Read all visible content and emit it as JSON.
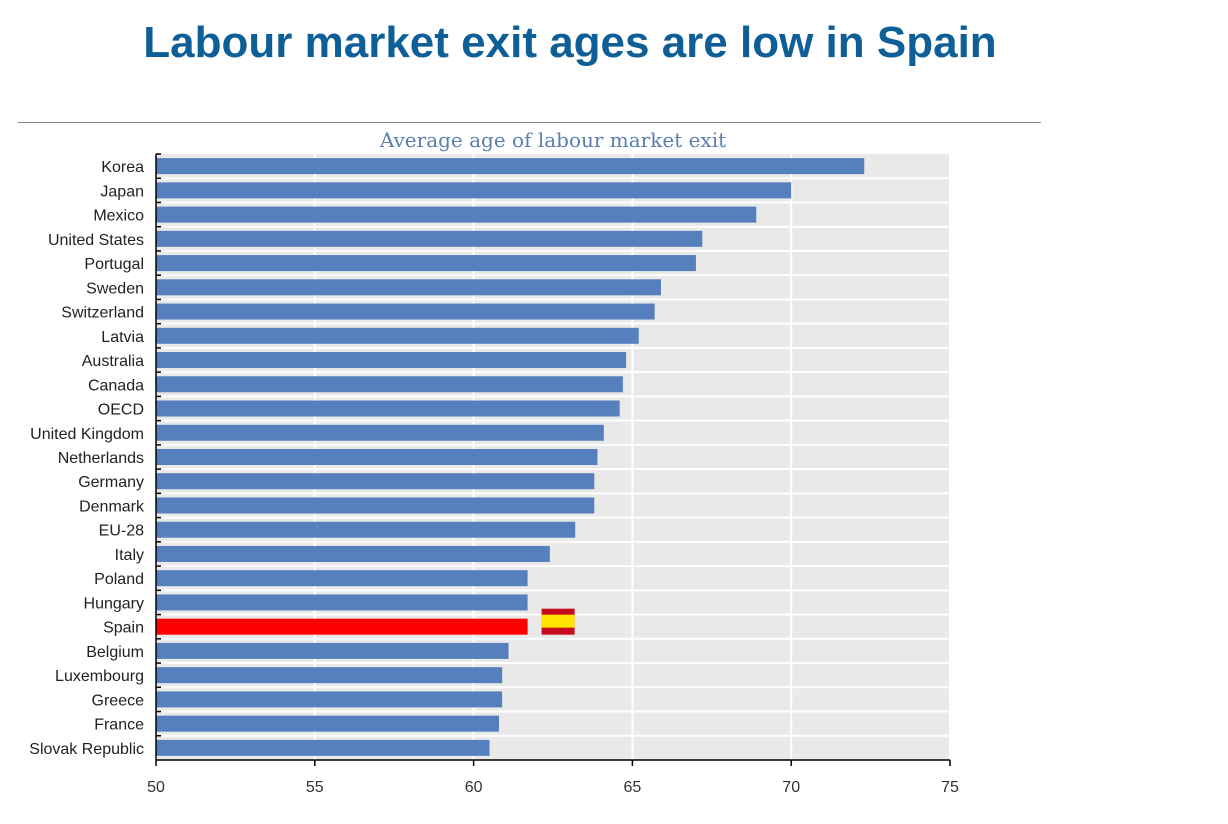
{
  "header": {
    "title": "Labour market exit ages are low in Spain"
  },
  "chart_data": {
    "type": "bar",
    "orientation": "horizontal",
    "title": "Average age of labour market exit",
    "xlabel": "",
    "ylabel": "",
    "xlim": [
      50,
      75
    ],
    "xticks": [
      50,
      55,
      60,
      65,
      70,
      75
    ],
    "grid": true,
    "categories": [
      "Korea",
      "Japan",
      "Mexico",
      "United States",
      "Portugal",
      "Sweden",
      "Switzerland",
      "Latvia",
      "Australia",
      "Canada",
      "OECD",
      "United Kingdom",
      "Netherlands",
      "Germany",
      "Denmark",
      "EU-28",
      "Italy",
      "Poland",
      "Hungary",
      "Spain",
      "Belgium",
      "Luxembourg",
      "Greece",
      "France",
      "Slovak Republic"
    ],
    "values": [
      72.3,
      70.0,
      68.9,
      67.2,
      67.0,
      65.9,
      65.7,
      65.2,
      64.8,
      64.7,
      64.6,
      64.1,
      63.9,
      63.8,
      63.8,
      63.2,
      62.4,
      61.7,
      61.7,
      61.7,
      61.1,
      60.9,
      60.9,
      60.8,
      60.5
    ],
    "highlight": {
      "category": "Spain",
      "color": "#ff0000",
      "icon": "spain-flag-icon"
    },
    "colors": {
      "bar": "#5580bd",
      "background": "#e9e9e9",
      "grid": "#ffffff",
      "title": "#0e5f97",
      "subtitle": "#5a7fb0"
    }
  }
}
